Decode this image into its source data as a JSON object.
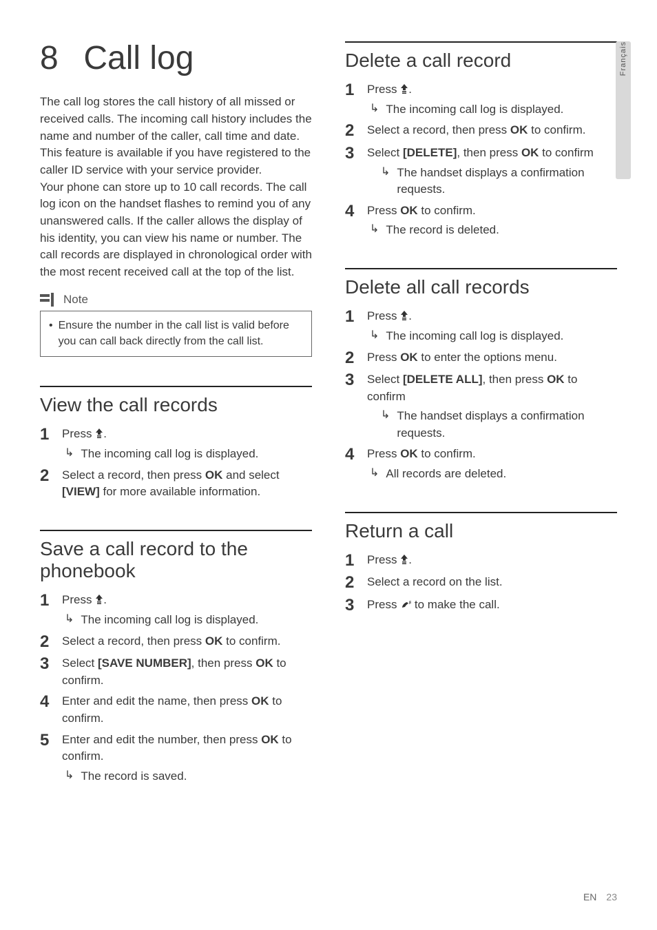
{
  "side_tab": "Français",
  "chapter": {
    "number": "8",
    "title": "Call log"
  },
  "intro_paragraphs": [
    "The call log stores the call history of all missed or received calls. The incoming call history includes the name and number of the caller, call time and date. This feature is available if you have registered to the caller ID service with your service provider.",
    "Your phone can store up to 10 call records. The call log icon on the handset flashes to remind you of any unanswered calls. If the caller allows the display of his identity, you can view his name or number. The call records are displayed in chronological order with the most recent received call at the top of the list."
  ],
  "note": {
    "label": "Note",
    "text": "Ensure the number in the call list is valid before you can call back directly from the call list."
  },
  "sections": {
    "view": {
      "title": "View the call records",
      "steps": [
        {
          "text_before": "Press ",
          "icon": "up",
          "text_after": ".",
          "result": "The incoming call log is displayed."
        },
        {
          "html": "Select a record, then press <strong class='ok'>OK</strong> and select <strong class='cmd'>[VIEW]</strong> for more available information."
        }
      ]
    },
    "save": {
      "title": "Save a call record to the phonebook",
      "steps": [
        {
          "text_before": "Press ",
          "icon": "up",
          "text_after": ".",
          "result": "The incoming call log is displayed."
        },
        {
          "html": "Select a record, then press <strong class='ok'>OK</strong> to confirm."
        },
        {
          "html": "Select <strong class='cmd'>[SAVE NUMBER]</strong>, then press <strong class='ok'>OK</strong> to confirm."
        },
        {
          "html": "Enter and edit the name, then press <strong class='ok'>OK</strong> to confirm."
        },
        {
          "html": "Enter and edit the number, then press <strong class='ok'>OK</strong> to confirm.",
          "result": "The record is saved."
        }
      ]
    },
    "delete_one": {
      "title": "Delete a call record",
      "steps": [
        {
          "text_before": "Press ",
          "icon": "up",
          "text_after": ".",
          "result": "The incoming call log is displayed."
        },
        {
          "html": "Select a record, then press <strong class='ok'>OK</strong> to confirm."
        },
        {
          "html": "Select <strong class='cmd'>[DELETE]</strong>, then press <strong class='ok'>OK</strong> to confirm",
          "result": "The handset displays a confirmation requests.",
          "result_indent": true
        },
        {
          "html": "Press <strong class='ok'>OK</strong> to confirm.",
          "result": "The record is deleted."
        }
      ]
    },
    "delete_all": {
      "title": "Delete all call records",
      "steps": [
        {
          "text_before": "Press ",
          "icon": "up",
          "text_after": ".",
          "result": "The incoming call log is displayed."
        },
        {
          "html": "Press <strong class='ok'>OK</strong> to enter the options menu."
        },
        {
          "html": "Select <strong class='cmd'>[DELETE ALL]</strong>, then press <strong class='ok'>OK</strong> to confirm",
          "result": "The handset displays a confirmation requests.",
          "result_indent": true
        },
        {
          "html": "Press <strong class='ok'>OK</strong> to confirm.",
          "result": "All records are deleted."
        }
      ]
    },
    "return_call": {
      "title": "Return a call",
      "steps": [
        {
          "text_before": "Press ",
          "icon": "up",
          "text_after": "."
        },
        {
          "html": "Select a record on the list."
        },
        {
          "text_before": "Press ",
          "icon": "call",
          "text_after": " to make the call."
        }
      ]
    }
  },
  "footer": {
    "lang": "EN",
    "page": "23"
  },
  "colors": {
    "text": "#3a3a3a",
    "rule": "#222222",
    "side_tab_bg": "#d9d9d9",
    "note_border": "#666666"
  }
}
